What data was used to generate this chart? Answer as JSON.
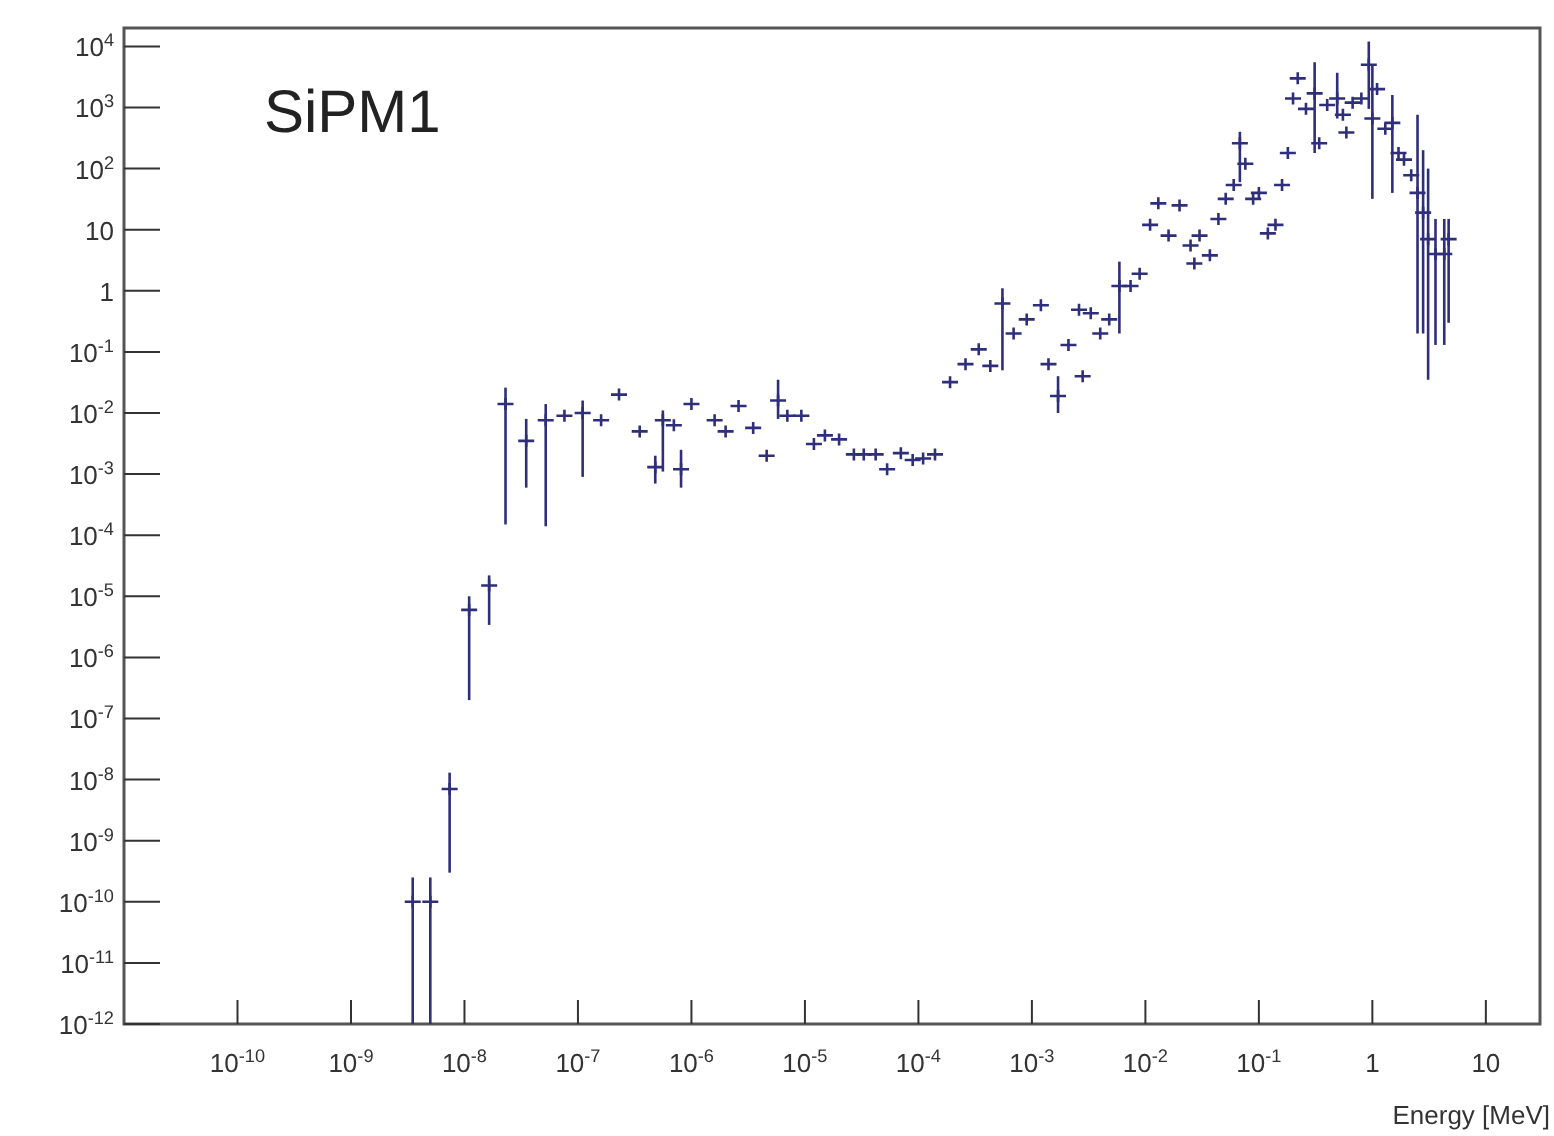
{
  "chart_data": {
    "type": "scatter",
    "title": "SiPM1",
    "xlabel": "Energy [MeV]",
    "log": "xy",
    "marker": "cross",
    "grid": false,
    "xlim": [
      1e-11,
      30
    ],
    "xticks": [
      {
        "value": 1e-10,
        "label": "10$^{-10}$"
      },
      {
        "value": 1e-09,
        "label": "10$^{-9}$"
      },
      {
        "value": 1e-08,
        "label": "10$^{-8}$"
      },
      {
        "value": 1e-07,
        "label": "10$^{-7}$"
      },
      {
        "value": 1e-06,
        "label": "10$^{-6}$"
      },
      {
        "value": 1e-05,
        "label": "10$^{-5}$"
      },
      {
        "value": 0.0001,
        "label": "10$^{-4}$"
      },
      {
        "value": 0.001,
        "label": "10$^{-3}$"
      },
      {
        "value": 0.01,
        "label": "10$^{-2}$"
      },
      {
        "value": 0.1,
        "label": "10$^{-1}$"
      },
      1,
      10
    ],
    "ylim": [
      1e-12,
      20000.0
    ],
    "yticks": [
      {
        "value": 1e-12,
        "label": "10$^{-12}$"
      },
      {
        "value": 1e-11,
        "label": "10$^{-11}$"
      },
      {
        "value": 1e-10,
        "label": "10$^{-10}$"
      },
      {
        "value": 1e-09,
        "label": "10$^{-9}$"
      },
      {
        "value": 1e-08,
        "label": "10$^{-8}$"
      },
      {
        "value": 1e-07,
        "label": "10$^{-7}$"
      },
      {
        "value": 1e-06,
        "label": "10$^{-6}$"
      },
      {
        "value": 1e-05,
        "label": "10$^{-5}$"
      },
      {
        "value": 0.0001,
        "label": "10$^{-4}$"
      },
      {
        "value": 0.001,
        "label": "10$^{-3}$"
      },
      {
        "value": 0.01,
        "label": "10$^{-2}$"
      },
      {
        "value": 0.1,
        "label": "10$^{-1}$"
      },
      1,
      10,
      {
        "value": 100,
        "label": "10$^{2}$"
      },
      {
        "value": 1000,
        "label": "10$^{3}$"
      },
      {
        "value": 10000,
        "label": "10$^{4}$"
      }
    ],
    "series": [
      {
        "color": "#2e2e7a",
        "x": [
          3.5e-09,
          5e-09,
          7.4e-09,
          1.1e-08,
          1.65e-08,
          2.3e-08,
          3.5e-08,
          5.2e-08,
          7.6e-08,
          1.1e-07,
          1.6e-07,
          2.3e-07,
          3.5e-07,
          4.8e-07,
          5.6e-07,
          7e-07,
          8.1e-07,
          1e-06,
          1.6e-06,
          2e-06,
          2.6e-06,
          3.5e-06,
          4.6e-06,
          5.8e-06,
          7e-06,
          9.3e-06,
          1.2e-05,
          1.5e-05,
          2e-05,
          2.7e-05,
          3.3e-05,
          4.2e-05,
          5.3e-05,
          7e-05,
          8.9e-05,
          0.00011,
          0.00014,
          0.00019,
          0.00026,
          0.00034,
          0.00043,
          0.00055,
          0.00069,
          0.0009,
          0.0012,
          0.0014,
          0.0017,
          0.0021,
          0.0026,
          0.0028,
          0.0033,
          0.004,
          0.0048,
          0.0059,
          0.0074,
          0.0089,
          0.011,
          0.013,
          0.016,
          0.02,
          0.025,
          0.027,
          0.03,
          0.037,
          0.044,
          0.051,
          0.06,
          0.068,
          0.076,
          0.089,
          0.1,
          0.12,
          0.14,
          0.16,
          0.18,
          0.2,
          0.22,
          0.26,
          0.31,
          0.34,
          0.4,
          0.49,
          0.55,
          0.59,
          0.67,
          0.8,
          0.93,
          1,
          1.1,
          1.3,
          1.5,
          1.7,
          1.9,
          2.2,
          2.5,
          2.8,
          3.1,
          3.6,
          4.3,
          4.7
        ],
        "values": [
          1e-10,
          1e-10,
          7e-09,
          6e-06,
          1.5e-05,
          0.014,
          0.0035,
          0.0076,
          0.009,
          0.01,
          0.0076,
          0.02,
          0.005,
          0.0013,
          0.0076,
          0.0063,
          0.0012,
          0.014,
          0.0076,
          0.005,
          0.013,
          0.0057,
          0.002,
          0.016,
          0.009,
          0.009,
          0.0031,
          0.0043,
          0.0037,
          0.0021,
          0.0021,
          0.0021,
          0.0012,
          0.0022,
          0.0017,
          0.0018,
          0.0021,
          0.032,
          0.063,
          0.11,
          0.059,
          0.62,
          0.2,
          0.34,
          0.58,
          0.063,
          0.019,
          0.13,
          0.49,
          0.04,
          0.43,
          0.2,
          0.34,
          1.2,
          1.2,
          1.9,
          12,
          27,
          8,
          25,
          5.5,
          2.8,
          8,
          3.8,
          15,
          32,
          54,
          260,
          120,
          32,
          40,
          8.7,
          12,
          54,
          180,
          1400,
          3000,
          950,
          1700,
          260,
          1100,
          1400,
          760,
          390,
          1200,
          1400,
          5000,
          660,
          2000,
          450,
          560,
          180,
          140,
          78,
          40,
          19,
          7,
          4,
          4,
          7
        ],
        "errors": [
          [
            1e-12,
            2.5e-10
          ],
          [
            1e-12,
            2.5e-10
          ],
          [
            3e-10,
            1.3e-08
          ],
          [
            2e-07,
            1e-05
          ],
          [
            3.4e-06,
            2.2e-05
          ],
          [
            0.00015,
            0.026
          ],
          [
            0.0006,
            0.008
          ],
          [
            0.00014,
            0.014
          ],
          null,
          [
            0.0009,
            0.016
          ],
          null,
          null,
          null,
          [
            0.0007,
            0.002
          ],
          [
            0.0011,
            0.011
          ],
          null,
          [
            0.0006,
            0.0025
          ],
          null,
          null,
          null,
          null,
          null,
          null,
          [
            0.008,
            0.035
          ],
          null,
          null,
          null,
          null,
          null,
          null,
          null,
          null,
          null,
          null,
          null,
          null,
          null,
          null,
          null,
          null,
          null,
          [
            0.05,
            1.1
          ],
          null,
          null,
          null,
          null,
          [
            0.01,
            0.04
          ],
          null,
          null,
          null,
          null,
          null,
          null,
          [
            0.2,
            3
          ],
          null,
          null,
          null,
          null,
          null,
          null,
          null,
          null,
          null,
          null,
          null,
          null,
          null,
          [
            60,
            400
          ],
          null,
          null,
          null,
          null,
          null,
          null,
          null,
          null,
          null,
          null,
          [
            180,
            5500
          ],
          null,
          null,
          [
            660,
            3700
          ],
          null,
          null,
          null,
          null,
          [
            950,
            12000
          ],
          [
            32,
            5000
          ],
          null,
          null,
          [
            40,
            1600
          ],
          null,
          null,
          null,
          [
            0.2,
            760
          ],
          [
            0.2,
            200
          ],
          [
            0.035,
            100
          ],
          [
            0.13,
            15
          ],
          [
            0.13,
            15
          ],
          [
            0.3,
            15
          ]
        ]
      }
    ]
  }
}
